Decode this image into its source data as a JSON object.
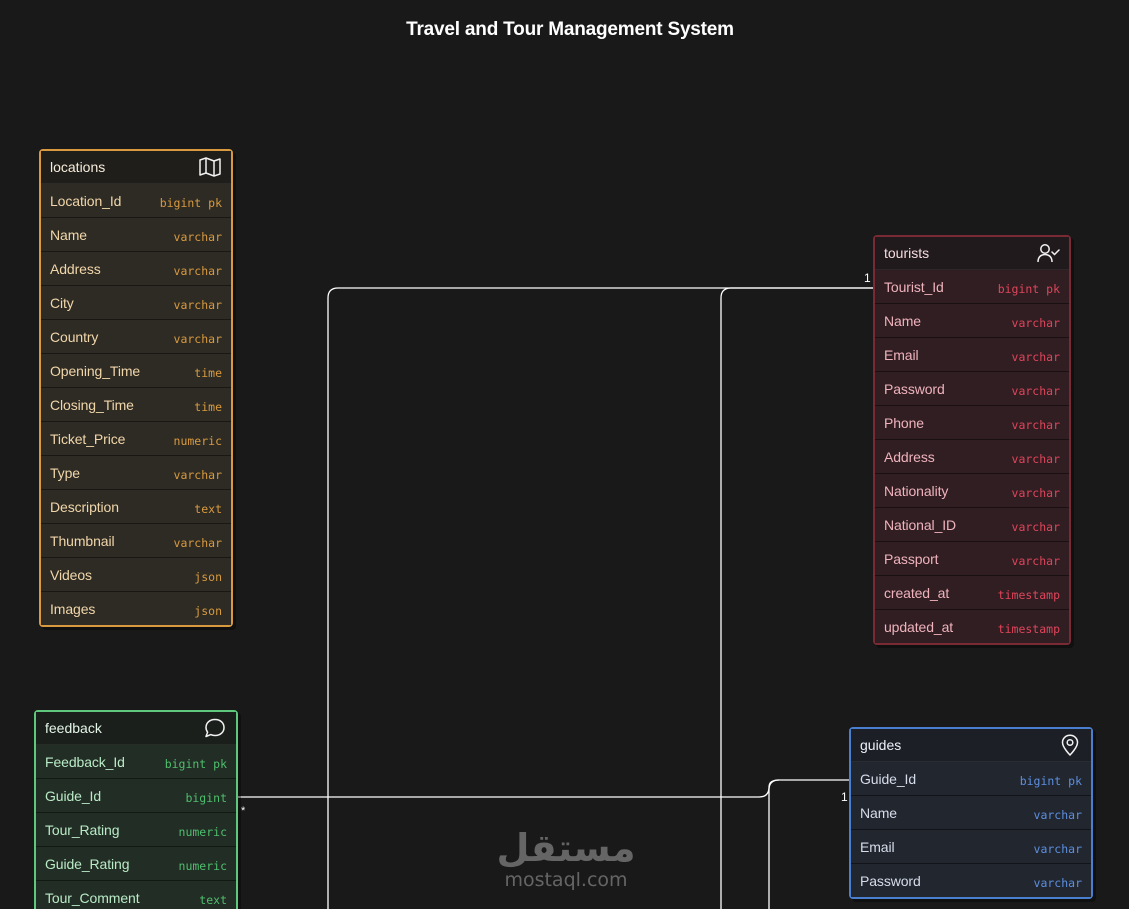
{
  "title": "Travel and Tour Management System",
  "colors": {
    "background": "#191919",
    "locations": "#d99a3f",
    "tourists": "#e0455a",
    "feedback": "#5ec97c",
    "guides": "#4a7fd0",
    "connector": "#ffffff"
  },
  "tables": {
    "locations": {
      "name": "locations",
      "icon": "map-icon",
      "fields": [
        {
          "name": "Location_Id",
          "type": "bigint pk"
        },
        {
          "name": "Name",
          "type": "varchar"
        },
        {
          "name": "Address",
          "type": "varchar"
        },
        {
          "name": "City",
          "type": "varchar"
        },
        {
          "name": "Country",
          "type": "varchar"
        },
        {
          "name": "Opening_Time",
          "type": "time"
        },
        {
          "name": "Closing_Time",
          "type": "time"
        },
        {
          "name": "Ticket_Price",
          "type": "numeric"
        },
        {
          "name": "Type",
          "type": "varchar"
        },
        {
          "name": "Description",
          "type": "text"
        },
        {
          "name": "Thumbnail",
          "type": "varchar"
        },
        {
          "name": "Videos",
          "type": "json"
        },
        {
          "name": "Images",
          "type": "json"
        }
      ]
    },
    "tourists": {
      "name": "tourists",
      "icon": "user-check-icon",
      "fields": [
        {
          "name": "Tourist_Id",
          "type": "bigint pk"
        },
        {
          "name": "Name",
          "type": "varchar"
        },
        {
          "name": "Email",
          "type": "varchar"
        },
        {
          "name": "Password",
          "type": "varchar"
        },
        {
          "name": "Phone",
          "type": "varchar"
        },
        {
          "name": "Address",
          "type": "varchar"
        },
        {
          "name": "Nationality",
          "type": "varchar"
        },
        {
          "name": "National_ID",
          "type": "varchar"
        },
        {
          "name": "Passport",
          "type": "varchar"
        },
        {
          "name": "created_at",
          "type": "timestamp"
        },
        {
          "name": "updated_at",
          "type": "timestamp"
        }
      ]
    },
    "feedback": {
      "name": "feedback",
      "icon": "speech-bubble-icon",
      "fields": [
        {
          "name": "Feedback_Id",
          "type": "bigint pk"
        },
        {
          "name": "Guide_Id",
          "type": "bigint"
        },
        {
          "name": "Tour_Rating",
          "type": "numeric"
        },
        {
          "name": "Guide_Rating",
          "type": "numeric"
        },
        {
          "name": "Tour_Comment",
          "type": "text"
        }
      ]
    },
    "guides": {
      "name": "guides",
      "icon": "map-pin-icon",
      "fields": [
        {
          "name": "Guide_Id",
          "type": "bigint pk"
        },
        {
          "name": "Name",
          "type": "varchar"
        },
        {
          "name": "Email",
          "type": "varchar"
        },
        {
          "name": "Password",
          "type": "varchar"
        }
      ]
    }
  },
  "relations": {
    "tourists_label": "1 1",
    "guides_label": "1 1",
    "feedback_label": "*"
  },
  "watermark": {
    "arabic": "مستقل",
    "latin": "mostaql.com"
  }
}
